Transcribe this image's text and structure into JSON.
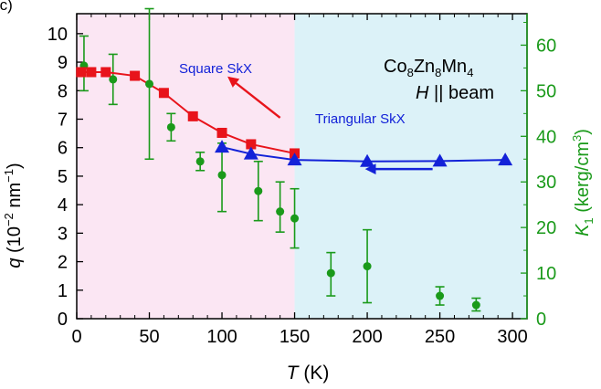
{
  "panel_tag": "(c)",
  "colors": {
    "left_axis": "#000000",
    "right_axis": "#1a9a1a",
    "square_region_bg": "#fbe6f3",
    "triangular_region_bg": "#dcf2f8",
    "square_series": "#e8141b",
    "triangular_series": "#1322d8",
    "k1_series": "#1a9a1a",
    "square_label": "#1322d8",
    "triangular_label": "#1322d8"
  },
  "chart_data": {
    "type": "scatter",
    "title": "",
    "xlabel": {
      "italic": "T",
      "rest": " (K)"
    },
    "ylabel_left": {
      "italic": "q",
      "rest": " (10",
      "sup": "−2",
      "rest2": " nm",
      "sup2": "−1",
      "rest3": ")"
    },
    "ylabel_right": {
      "italic": "K",
      "sub": "1",
      "rest": " (kerg/cm",
      "sup": "3",
      "rest2": ")"
    },
    "xlim": [
      0,
      310
    ],
    "ylim_left": [
      0,
      10.7
    ],
    "ylim_right": [
      0,
      66.9
    ],
    "x_ticks": [
      0,
      50,
      100,
      150,
      200,
      250,
      300
    ],
    "x_tick_labels": [
      "0",
      "50",
      "100",
      "150",
      "200",
      "250",
      "300"
    ],
    "y_left_ticks": [
      0,
      1,
      2,
      3,
      4,
      5,
      6,
      7,
      8,
      9,
      10
    ],
    "y_left_tick_labels": [
      "0",
      "1",
      "2",
      "3",
      "4",
      "5",
      "6",
      "7",
      "8",
      "9",
      "10"
    ],
    "y_right_ticks": [
      0,
      10,
      20,
      30,
      40,
      50,
      60
    ],
    "y_right_tick_labels": [
      "0",
      "10",
      "20",
      "30",
      "40",
      "50",
      "60"
    ],
    "regions": [
      {
        "name": "Square SkX",
        "x_from": 0,
        "x_to": 150
      },
      {
        "name": "Triangular SkX",
        "x_from": 150,
        "x_to": 310
      }
    ],
    "series": [
      {
        "name": "Square SkX",
        "axis": "left",
        "marker": "square",
        "x": [
          3,
          10,
          20,
          40,
          60,
          80,
          100,
          120,
          150
        ],
        "y": [
          8.65,
          8.65,
          8.65,
          8.52,
          7.92,
          7.1,
          6.52,
          6.12,
          5.8
        ]
      },
      {
        "name": "Triangular SkX",
        "axis": "left",
        "marker": "triangle",
        "x": [
          100,
          120,
          150,
          200,
          250,
          295
        ],
        "y": [
          6.02,
          5.78,
          5.57,
          5.52,
          5.53,
          5.57
        ]
      },
      {
        "name": "K1",
        "axis": "right",
        "marker": "circle",
        "x": [
          5,
          25,
          50,
          65,
          85,
          100,
          125,
          140,
          150,
          175,
          200,
          250,
          275
        ],
        "y": [
          55.5,
          52.5,
          51.5,
          42.0,
          34.5,
          31.5,
          28.0,
          23.5,
          22.0,
          10.0,
          11.5,
          5.0,
          3.0
        ],
        "err_low": [
          50.0,
          47.0,
          35.0,
          39.0,
          32.5,
          23.5,
          21.5,
          19.0,
          15.5,
          5.0,
          3.5,
          3.0,
          1.7
        ],
        "err_high": [
          62.0,
          58.0,
          68.0,
          45.0,
          36.5,
          38.5,
          34.5,
          30.0,
          28.5,
          14.5,
          19.5,
          7.0,
          4.5
        ]
      }
    ],
    "annotations": {
      "square_label": "Square SkX",
      "triangular_label": "Triangular SkX",
      "compound": {
        "a": "Co",
        "a_sub": "8",
        "b": "Zn",
        "b_sub": "8",
        "c": "Mn",
        "c_sub": "4"
      },
      "field": {
        "italic": "H",
        "rest": " || beam"
      },
      "arrows": [
        {
          "name": "square-arrow",
          "color": "red",
          "from": [
            140,
            7.05
          ],
          "to": [
            105,
            8.45
          ]
        },
        {
          "name": "triangular-arrow",
          "color": "blue",
          "from": [
            245,
            5.25
          ],
          "to": [
            200,
            5.25
          ]
        }
      ]
    }
  }
}
